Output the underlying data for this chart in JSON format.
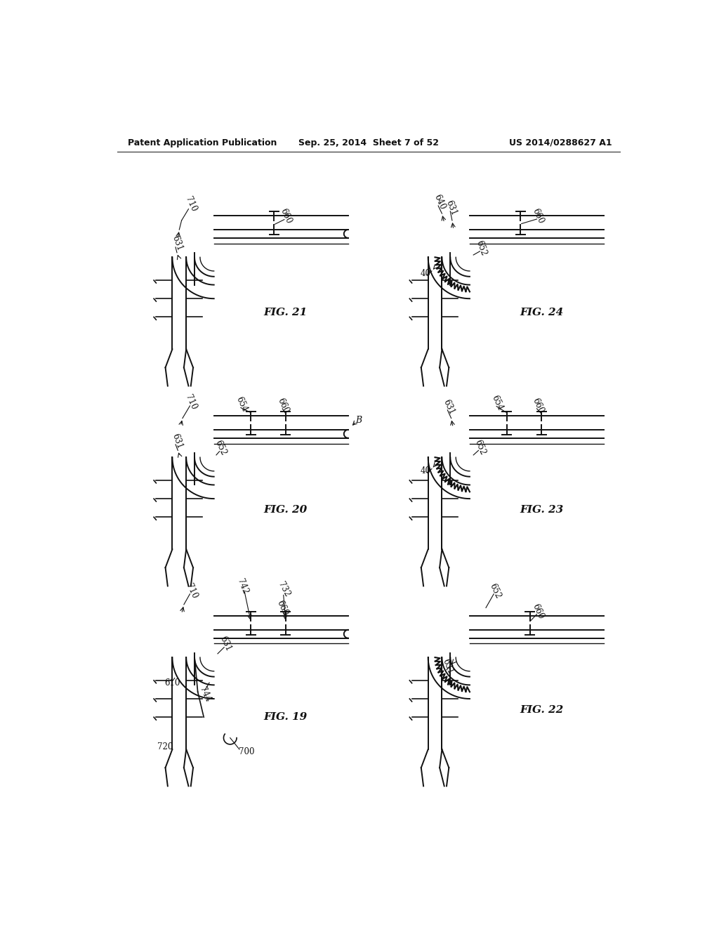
{
  "bg_color": "#ffffff",
  "line_color": "#111111",
  "header_left": "Patent Application Publication",
  "header_mid": "Sep. 25, 2014  Sheet 7 of 52",
  "header_right": "US 2014/0288627 A1"
}
